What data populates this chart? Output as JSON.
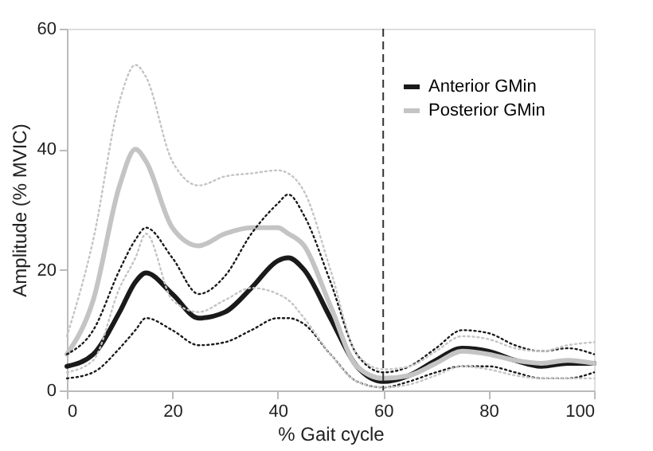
{
  "chart_data": {
    "type": "line",
    "xlabel": "% Gait cycle",
    "ylabel": "Amplitude (% MVIC)",
    "x": [
      0,
      5,
      10,
      13,
      15,
      20,
      25,
      30,
      35,
      40,
      42,
      45,
      50,
      55,
      60,
      65,
      70,
      75,
      80,
      85,
      90,
      95,
      100
    ],
    "series": [
      {
        "name": "Anterior GMin",
        "color": "#1a1a1a",
        "values": [
          4,
          6,
          13,
          18,
          19.5,
          16,
          12,
          13,
          17,
          21.5,
          22,
          20,
          12,
          4,
          1.5,
          2.5,
          5,
          7,
          6.5,
          5,
          4,
          4.5,
          4.5
        ]
      },
      {
        "name": "Posterior GMin",
        "color": "#c4c4c4",
        "values": [
          6,
          15,
          34,
          40,
          38,
          27,
          24,
          26,
          27,
          27,
          26,
          24,
          14,
          4,
          2,
          2.5,
          4.5,
          6.5,
          6,
          5,
          4.5,
          5,
          4.5
        ]
      },
      {
        "color": "#1a1a1a",
        "line_style": "dotted",
        "values": [
          6,
          10,
          20,
          25,
          27,
          22,
          16,
          19,
          26,
          31,
          32.5,
          29,
          18,
          6,
          3,
          4,
          7,
          10,
          9.5,
          7.5,
          6.5,
          7,
          6
        ]
      },
      {
        "color": "#1a1a1a",
        "line_style": "dotted",
        "values": [
          2,
          3,
          7,
          10,
          12,
          10,
          7.5,
          8,
          10,
          12,
          12,
          11,
          6,
          1.5,
          0.5,
          1.5,
          3,
          4,
          4,
          3,
          2,
          2,
          3
        ]
      },
      {
        "color": "#c4c4c4",
        "line_style": "dotted",
        "values": [
          9,
          25,
          48,
          54,
          52,
          38,
          34,
          35.5,
          36,
          36.5,
          36,
          33,
          20,
          6,
          3.5,
          4,
          6.5,
          9,
          8.5,
          7,
          6.5,
          7.5,
          8
        ]
      },
      {
        "color": "#c4c4c4",
        "line_style": "dotted",
        "values": [
          3,
          5,
          17,
          22,
          26,
          15,
          13,
          15,
          17,
          16,
          15,
          12,
          6,
          1.5,
          0.5,
          1,
          2.5,
          4,
          3.5,
          2.5,
          2,
          2,
          2
        ]
      }
    ],
    "xlim": [
      0,
      100
    ],
    "xticks": [
      0,
      20,
      40,
      60,
      80,
      100
    ],
    "ylim": [
      0,
      60
    ],
    "yticks": [
      0,
      20,
      40,
      60
    ],
    "ref_lines": [
      {
        "axis": "x",
        "value": 60,
        "line_style": "dashed",
        "color": "#333333"
      }
    ],
    "grid": false,
    "legend": "top right",
    "line_style": "solid",
    "marker": "none"
  }
}
